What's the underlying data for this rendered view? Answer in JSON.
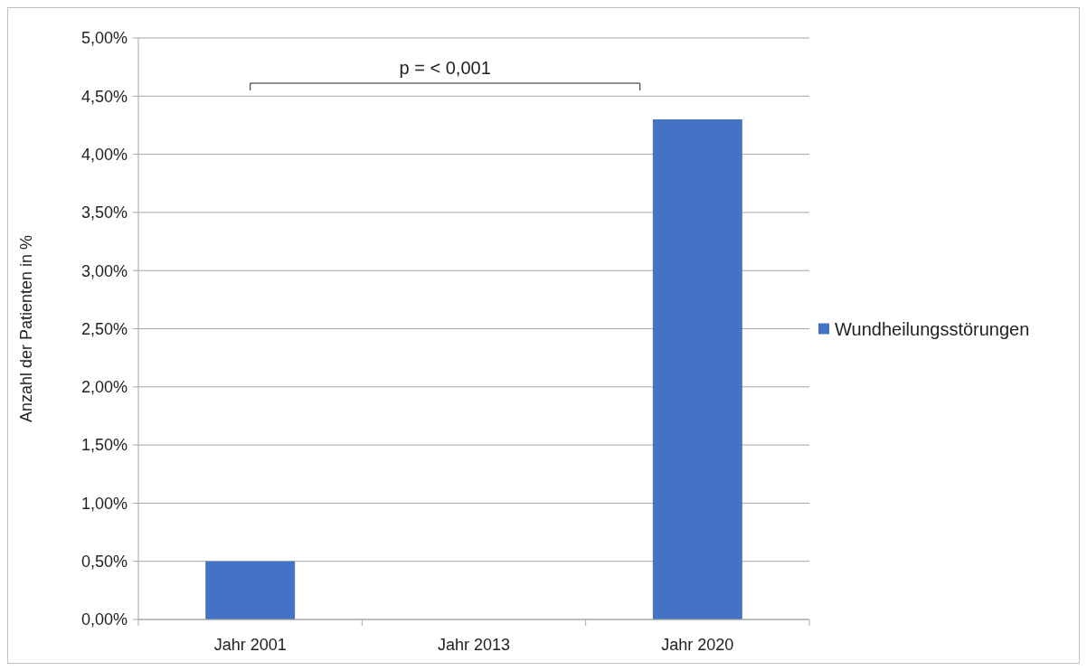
{
  "chart_data": {
    "type": "bar",
    "ylabel": "Anzahl der Patienten in %",
    "categories": [
      "Jahr 2001",
      "Jahr 2013",
      "Jahr 2020"
    ],
    "series": [
      {
        "name": "Wundheilungsstörungen",
        "color": "#4472c4",
        "values": [
          0.5,
          0,
          4.3
        ]
      }
    ],
    "ylim": [
      0,
      5
    ],
    "yticks": [
      {
        "value": 0,
        "label": "0,00%"
      },
      {
        "value": 0.5,
        "label": "0,50%"
      },
      {
        "value": 1,
        "label": "1,00%"
      },
      {
        "value": 1.5,
        "label": "1,50%"
      },
      {
        "value": 2,
        "label": "2,00%"
      },
      {
        "value": 2.5,
        "label": "2,50%"
      },
      {
        "value": 3,
        "label": "3,00%"
      },
      {
        "value": 3.5,
        "label": "3,50%"
      },
      {
        "value": 4,
        "label": "4,00%"
      },
      {
        "value": 4.5,
        "label": "4,50%"
      },
      {
        "value": 5,
        "label": "5,00%"
      }
    ],
    "grid": "y",
    "legend": "right",
    "annotations": [
      "p = < 0,001"
    ]
  }
}
